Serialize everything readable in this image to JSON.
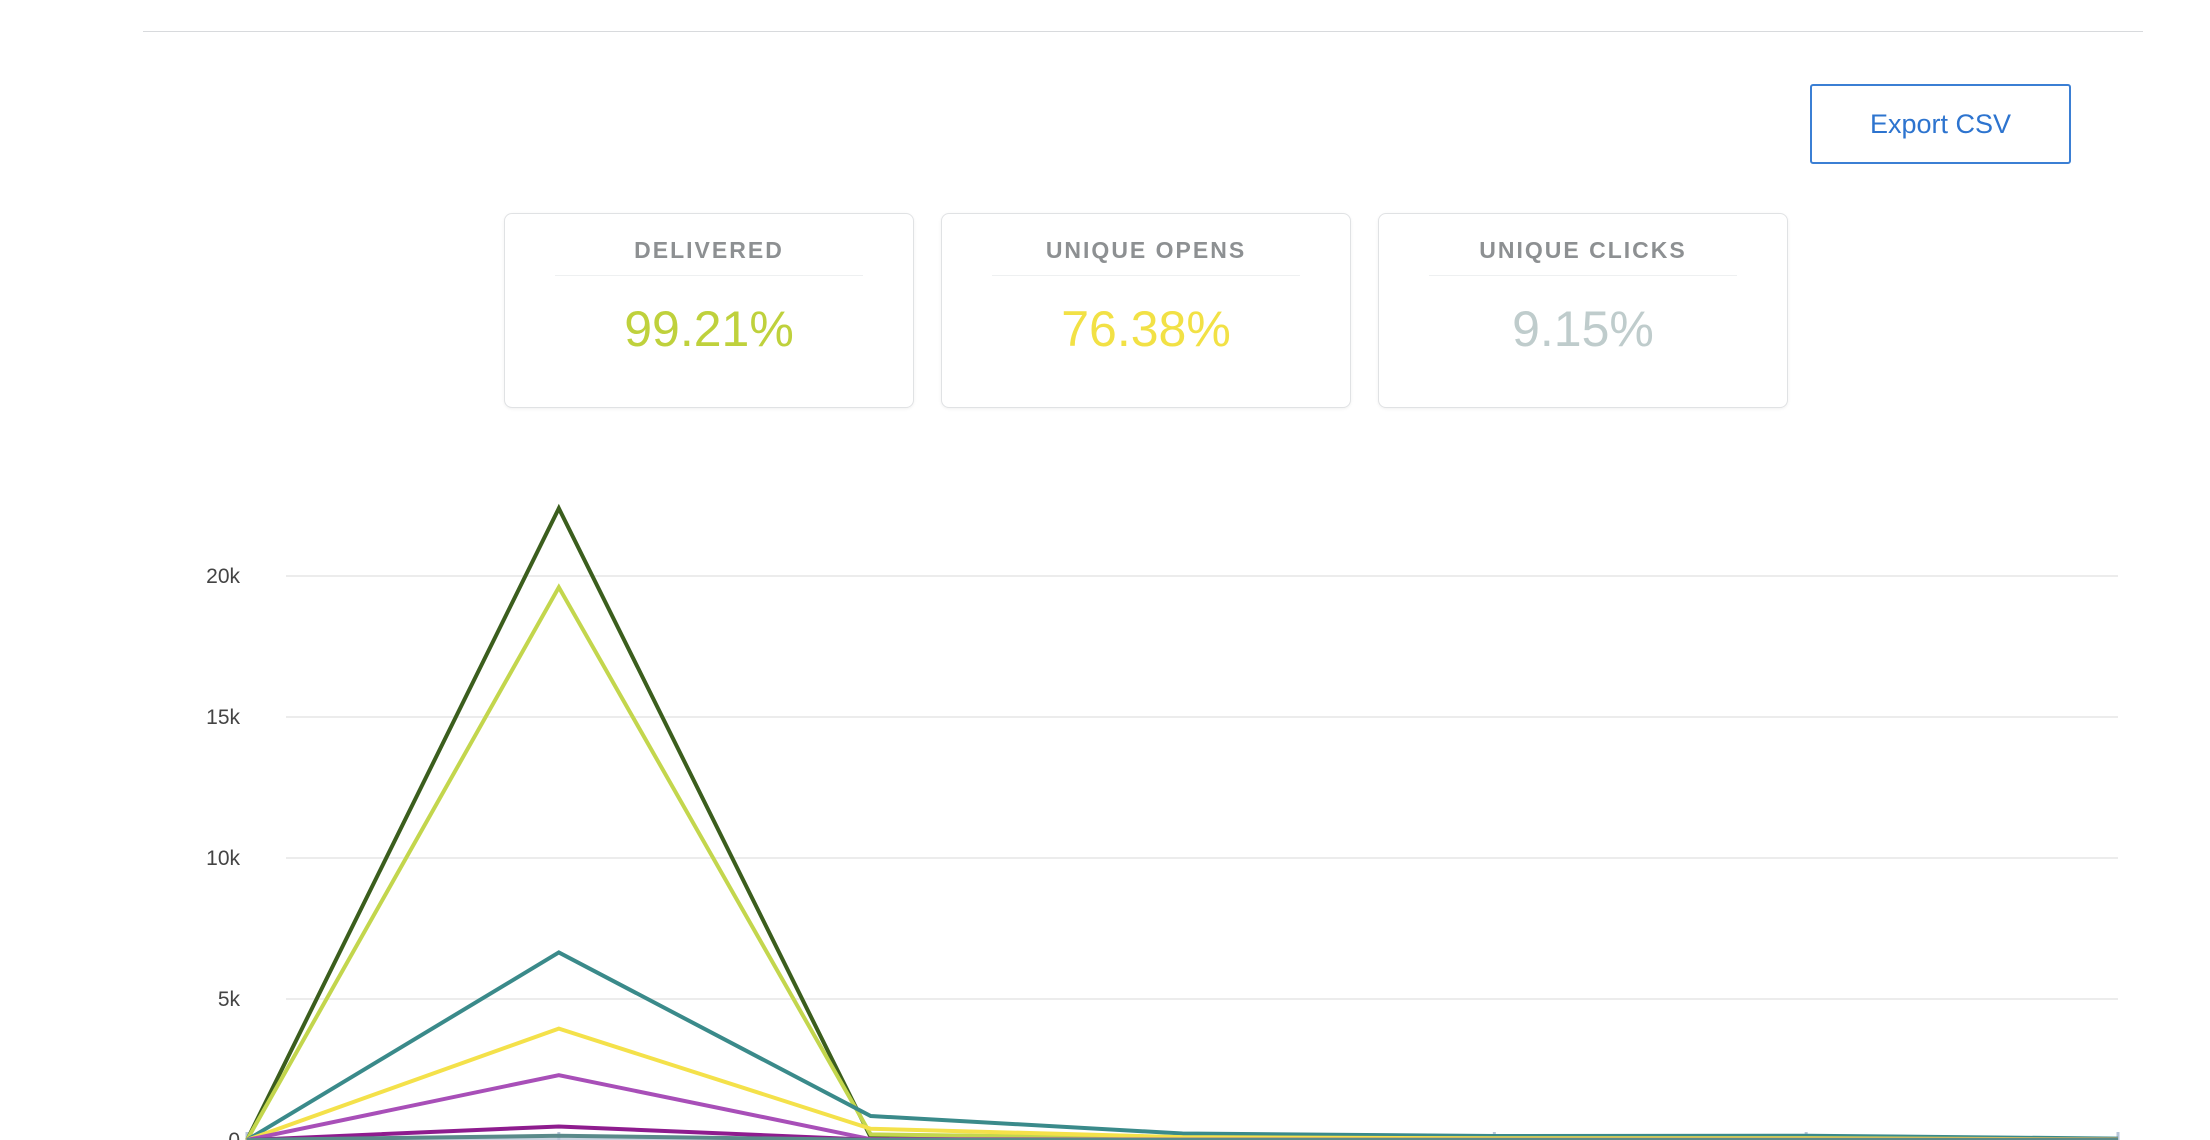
{
  "toolbar": {
    "export_label": "Export CSV"
  },
  "stats": [
    {
      "label": "DELIVERED",
      "value": "99.21%",
      "color": "#bfd13c"
    },
    {
      "label": "UNIQUE OPENS",
      "value": "76.38%",
      "color": "#f2e145"
    },
    {
      "label": "UNIQUE CLICKS",
      "value": "9.15%",
      "color": "#bfcccc"
    }
  ],
  "chart_data": {
    "type": "line",
    "title": "",
    "xlabel": "",
    "ylabel": "",
    "x": [
      0,
      1,
      2,
      3,
      4,
      5,
      6
    ],
    "ylim": [
      0,
      22500
    ],
    "yticks": [
      {
        "value": 0,
        "label": "0"
      },
      {
        "value": 5000,
        "label": "5k"
      },
      {
        "value": 10000,
        "label": "10k"
      },
      {
        "value": 15000,
        "label": "15k"
      },
      {
        "value": 20000,
        "label": "20k"
      }
    ],
    "grid": true,
    "series": [
      {
        "color": "#3b5e1d",
        "values": [
          0,
          22400,
          100,
          30,
          20,
          20,
          10
        ]
      },
      {
        "color": "#c3d64d",
        "values": [
          0,
          19600,
          200,
          60,
          40,
          40,
          20
        ]
      },
      {
        "color": "#3a8a8a",
        "values": [
          0,
          6650,
          850,
          230,
          140,
          150,
          50
        ]
      },
      {
        "color": "#f4e14a",
        "values": [
          0,
          3950,
          400,
          100,
          60,
          60,
          20
        ]
      },
      {
        "color": "#a84fb8",
        "values": [
          0,
          2300,
          30,
          10,
          5,
          5,
          5
        ]
      },
      {
        "color": "#8e1c8e",
        "values": [
          0,
          480,
          10,
          5,
          5,
          5,
          5
        ]
      },
      {
        "color": "#5a8a8a",
        "values": [
          0,
          150,
          5,
          5,
          5,
          5,
          5
        ]
      }
    ]
  }
}
